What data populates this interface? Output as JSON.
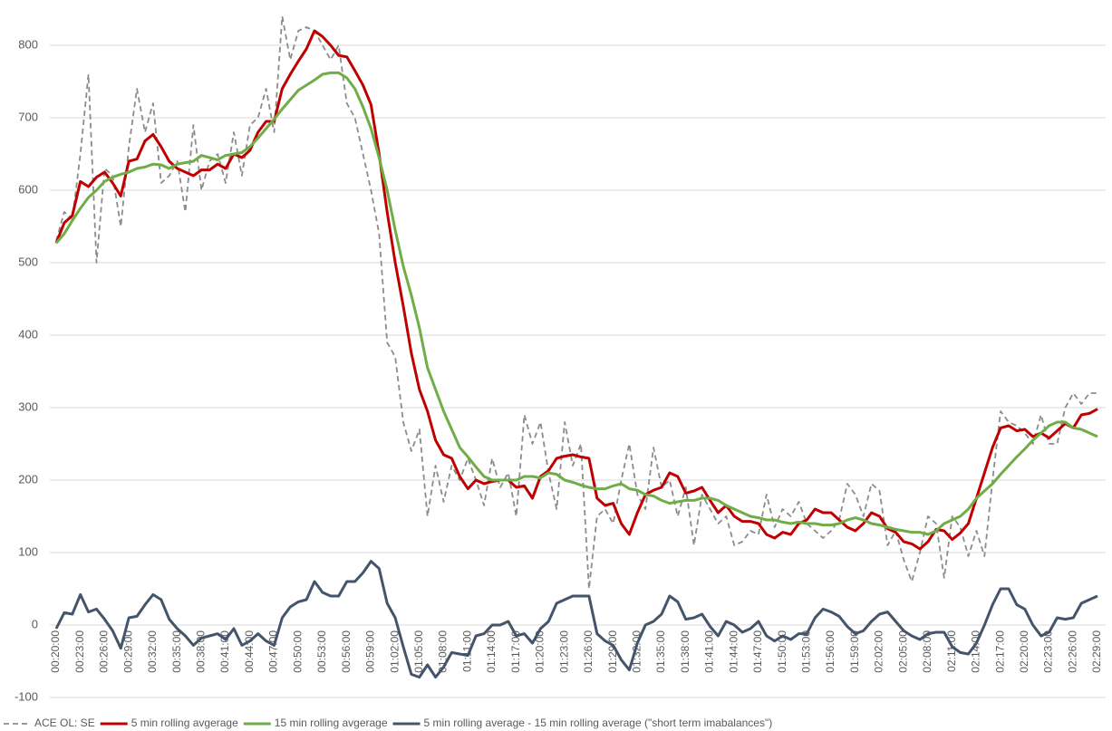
{
  "chart_data": {
    "type": "line",
    "categories": [
      "00:20:00",
      null,
      null,
      "00:23:00",
      null,
      null,
      "00:26:00",
      null,
      null,
      "00:29:00",
      null,
      null,
      "00:32:00",
      null,
      null,
      "00:35:00",
      null,
      null,
      "00:38:00",
      null,
      null,
      "00:41:00",
      null,
      null,
      "00:44:00",
      null,
      null,
      "00:47:00",
      null,
      null,
      "00:50:00",
      null,
      null,
      "00:53:00",
      null,
      null,
      "00:56:00",
      null,
      null,
      "00:59:00",
      null,
      null,
      "01:02:00",
      null,
      null,
      "01:05:00",
      null,
      null,
      "01:08:00",
      null,
      null,
      "01:11:00",
      null,
      null,
      "01:14:00",
      null,
      null,
      "01:17:00",
      null,
      null,
      "01:20:00",
      null,
      null,
      "01:23:00",
      null,
      null,
      "01:26:00",
      null,
      null,
      "01:29:00",
      null,
      null,
      "01:32:00",
      null,
      null,
      "01:35:00",
      null,
      null,
      "01:38:00",
      null,
      null,
      "01:41:00",
      null,
      null,
      "01:44:00",
      null,
      null,
      "01:47:00",
      null,
      null,
      "01:50:00",
      null,
      null,
      "01:53:00",
      null,
      null,
      "01:56:00",
      null,
      null,
      "01:59:00",
      null,
      null,
      "02:02:00",
      null,
      null,
      "02:05:00",
      null,
      null,
      "02:08:00",
      null,
      null,
      "02:11:00",
      null,
      null,
      "02:14:00",
      null,
      null,
      "02:17:00",
      null,
      null,
      "02:20:00",
      null,
      null,
      "02:23:00",
      null,
      null,
      "02:26:00",
      null,
      null,
      "02:29:00"
    ],
    "series": [
      {
        "name": "ACE OL: SE",
        "color": "#8c8c8c",
        "style": "dashed",
        "values": [
          530,
          570,
          560,
          650,
          760,
          500,
          630,
          620,
          550,
          660,
          740,
          680,
          720,
          610,
          620,
          640,
          570,
          690,
          600,
          640,
          650,
          610,
          680,
          620,
          690,
          700,
          740,
          680,
          840,
          780,
          820,
          825,
          820,
          800,
          780,
          800,
          720,
          700,
          650,
          600,
          540,
          390,
          370,
          280,
          240,
          270,
          150,
          220,
          170,
          220,
          200,
          230,
          200,
          165,
          230,
          190,
          210,
          150,
          290,
          250,
          280,
          210,
          160,
          280,
          220,
          250,
          50,
          150,
          160,
          140,
          200,
          250,
          180,
          160,
          245,
          190,
          200,
          150,
          190,
          110,
          180,
          160,
          140,
          150,
          110,
          115,
          130,
          125,
          180,
          135,
          160,
          150,
          170,
          140,
          130,
          120,
          130,
          145,
          195,
          180,
          150,
          195,
          185,
          110,
          130,
          90,
          60,
          100,
          150,
          140,
          65,
          150,
          135,
          95,
          130,
          95,
          200,
          295,
          280,
          275,
          265,
          250,
          290,
          250,
          250,
          300,
          320,
          305,
          320,
          320
        ]
      },
      {
        "name": "5 min rolling avgerage",
        "color": "#c00000",
        "style": "solid",
        "values": [
          527,
          555,
          565,
          612,
          605,
          618,
          625,
          610,
          592,
          640,
          643,
          668,
          677,
          660,
          640,
          630,
          625,
          620,
          628,
          628,
          636,
          630,
          650,
          645,
          655,
          680,
          695,
          695,
          740,
          760,
          778,
          795,
          820,
          812,
          800,
          786,
          784,
          765,
          745,
          718,
          650,
          570,
          500,
          440,
          375,
          325,
          295,
          255,
          235,
          230,
          205,
          188,
          200,
          195,
          198,
          200,
          200,
          190,
          192,
          175,
          205,
          213,
          230,
          233,
          235,
          232,
          230,
          175,
          165,
          168,
          140,
          125,
          155,
          180,
          186,
          190,
          210,
          205,
          182,
          185,
          190,
          172,
          155,
          165,
          150,
          143,
          143,
          140,
          125,
          120,
          128,
          125,
          140,
          145,
          160,
          155,
          155,
          145,
          135,
          130,
          140,
          155,
          150,
          133,
          128,
          115,
          112,
          105,
          115,
          132,
          130,
          118,
          127,
          140,
          175,
          210,
          245,
          272,
          275,
          268,
          270,
          260,
          265,
          258,
          268,
          278,
          272,
          290,
          292,
          298
        ]
      },
      {
        "name": "15 min rolling avgerage",
        "color": "#70ad47",
        "style": "solid",
        "values": [
          527,
          540,
          558,
          575,
          590,
          600,
          612,
          618,
          622,
          625,
          630,
          632,
          636,
          635,
          630,
          636,
          638,
          640,
          648,
          645,
          642,
          648,
          650,
          652,
          660,
          672,
          685,
          698,
          712,
          725,
          738,
          745,
          752,
          760,
          762,
          762,
          755,
          740,
          715,
          685,
          645,
          600,
          545,
          495,
          455,
          410,
          355,
          325,
          295,
          270,
          245,
          232,
          218,
          205,
          200,
          200,
          200,
          200,
          205,
          205,
          203,
          210,
          208,
          200,
          197,
          193,
          190,
          188,
          188,
          192,
          195,
          188,
          186,
          180,
          178,
          172,
          168,
          170,
          172,
          172,
          175,
          175,
          172,
          165,
          160,
          155,
          150,
          148,
          145,
          145,
          142,
          140,
          142,
          140,
          140,
          138,
          138,
          140,
          145,
          148,
          145,
          140,
          138,
          135,
          132,
          130,
          128,
          128,
          125,
          130,
          140,
          145,
          150,
          160,
          175,
          185,
          195,
          208,
          220,
          232,
          243,
          255,
          265,
          275,
          280,
          280,
          272,
          270,
          265,
          260
        ]
      },
      {
        "name": "5 min rolling average - 15 min rolling average (\"short term imabalances\")",
        "color": "#44546a",
        "style": "solid",
        "values": [
          -5,
          17,
          15,
          42,
          18,
          22,
          8,
          -8,
          -32,
          10,
          12,
          28,
          42,
          35,
          8,
          -5,
          -15,
          -28,
          -18,
          -15,
          -12,
          -20,
          -5,
          -28,
          -22,
          -12,
          -22,
          -28,
          10,
          25,
          32,
          35,
          60,
          45,
          40,
          40,
          60,
          60,
          72,
          88,
          78,
          30,
          10,
          -30,
          -68,
          -72,
          -55,
          -72,
          -58,
          -38,
          -40,
          -42,
          -15,
          -12,
          0,
          0,
          5,
          -15,
          -12,
          -25,
          -5,
          5,
          30,
          35,
          40,
          40,
          40,
          -12,
          -22,
          -28,
          -48,
          -62,
          -25,
          0,
          5,
          15,
          40,
          32,
          8,
          10,
          15,
          -2,
          -15,
          5,
          0,
          -10,
          -5,
          5,
          -15,
          -22,
          -15,
          -20,
          -12,
          -12,
          10,
          22,
          18,
          12,
          -2,
          -12,
          -8,
          5,
          15,
          18,
          5,
          -8,
          -15,
          -20,
          -12,
          -10,
          -10,
          -30,
          -38,
          -40,
          -25,
          0,
          28,
          50,
          50,
          28,
          22,
          0,
          -15,
          -10,
          10,
          8,
          10,
          30,
          35,
          40
        ]
      }
    ],
    "ylim": [
      -100,
      850
    ],
    "yticks": [
      -100,
      0,
      100,
      200,
      300,
      400,
      500,
      600,
      700,
      800
    ],
    "grid": true,
    "legend": "bottom"
  }
}
